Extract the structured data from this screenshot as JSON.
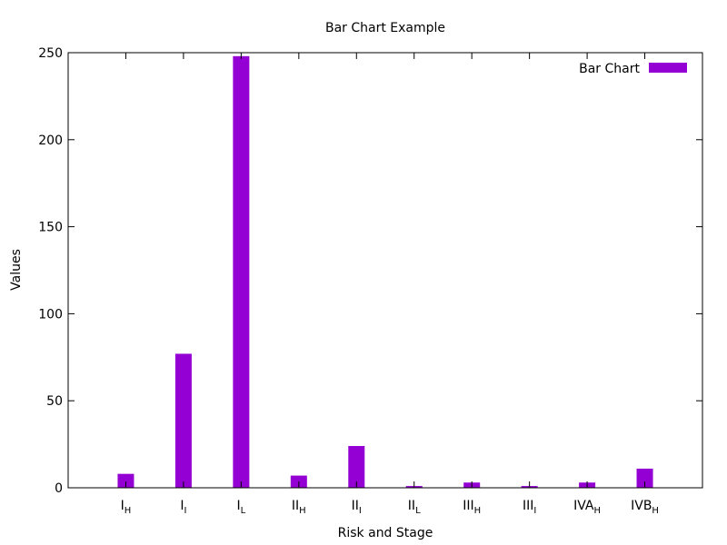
{
  "chart_data": {
    "type": "bar",
    "title": "Bar Chart Example",
    "xlabel": "Risk and Stage",
    "ylabel": "Values",
    "ylim": [
      0,
      250
    ],
    "yticks": [
      0,
      50,
      100,
      150,
      200,
      250
    ],
    "categories": [
      {
        "base": "I",
        "sub": "H"
      },
      {
        "base": "I",
        "sub": "I"
      },
      {
        "base": "I",
        "sub": "L"
      },
      {
        "base": "II",
        "sub": "H"
      },
      {
        "base": "II",
        "sub": "I"
      },
      {
        "base": "II",
        "sub": "L"
      },
      {
        "base": "III",
        "sub": "H"
      },
      {
        "base": "III",
        "sub": "I"
      },
      {
        "base": "IVA",
        "sub": "H"
      },
      {
        "base": "IVB",
        "sub": "H"
      }
    ],
    "series": [
      {
        "name": "Bar Chart",
        "color": "#9400d3",
        "values": [
          8,
          77,
          248,
          7,
          24,
          1,
          3,
          1,
          3,
          11
        ]
      }
    ],
    "legend": {
      "position": "top-right"
    },
    "grid": false
  }
}
